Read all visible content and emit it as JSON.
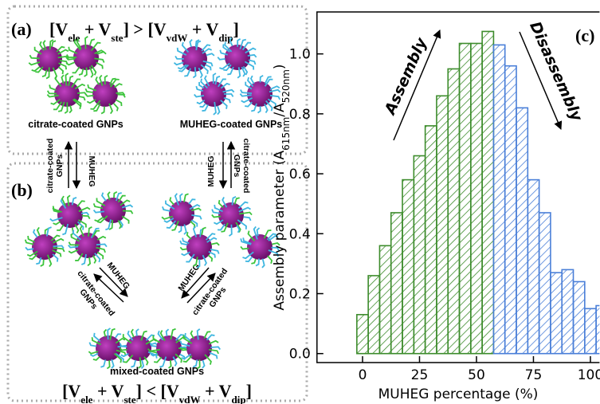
{
  "chart_data": {
    "type": "histogram",
    "xlabel": "MUHEG percentage (%)",
    "ylabel": [
      "Assembly parameter (A",
      "615nm",
      "/A",
      "520nm",
      ")"
    ],
    "panel": "(c)",
    "annotations": [
      "Assembly",
      "Disassembly"
    ],
    "series": [
      {
        "color": "#3d8c2c",
        "bins": [
          -2.5,
          2.5,
          7.5,
          12.5,
          17.5,
          22.5,
          27.5,
          32.5,
          37.5,
          42.5,
          47.5,
          52.5,
          57.5
        ],
        "values": [
          0.13,
          0.26,
          0.36,
          0.47,
          0.58,
          0.66,
          0.76,
          0.86,
          0.95,
          1.035,
          1.035,
          1.075
        ]
      },
      {
        "color": "#4a7fd8",
        "bins": [
          57.5,
          62.5,
          67.5,
          72.5,
          77.5,
          82.5,
          87.5,
          92.5,
          97.5,
          102.5,
          107.5
        ],
        "values": [
          1.03,
          0.96,
          0.82,
          0.58,
          0.47,
          0.27,
          0.28,
          0.24,
          0.15,
          0.16
        ]
      }
    ],
    "xlim": [
      -20,
      104
    ],
    "xticks": [
      0,
      25,
      50,
      75,
      100
    ],
    "ylim": [
      -0.03,
      1.14
    ],
    "yticks": [
      {
        "value": 0,
        "label": "0.0"
      },
      0.2,
      0.4,
      0.6,
      0.8,
      {
        "value": 1,
        "label": "1.0"
      }
    ]
  },
  "schematic": {
    "panel_a": "(a)",
    "eq_top": [
      "[V",
      "ele",
      " + V",
      "ste",
      "] > [V",
      "vdW",
      " + V",
      "dip",
      "]"
    ],
    "label_citrate": "citrate-coated GNPs",
    "label_muheg": "MUHEG-coated GNPs",
    "arrow_left_a": [
      "citrate-coated",
      "GNPs"
    ],
    "arrow_left_b": "MUHEG",
    "arrow_right_a": "MUHEG",
    "arrow_right_b": [
      "citrate-coated",
      "GNPs"
    ],
    "panel_b": "(b)",
    "diag_left_a": "MUHEG",
    "diag_left_b": [
      "citrate-coated",
      "GNPs"
    ],
    "diag_right_a": "MUHEG",
    "diag_right_b": [
      "citrate-coated",
      "GNPs"
    ],
    "label_mixed": "mixed-coated GNPs",
    "eq_bottom": [
      "[V",
      "ele",
      " + V",
      "ste",
      "] < [V",
      "vdW",
      " + V",
      "dip",
      "]"
    ]
  }
}
